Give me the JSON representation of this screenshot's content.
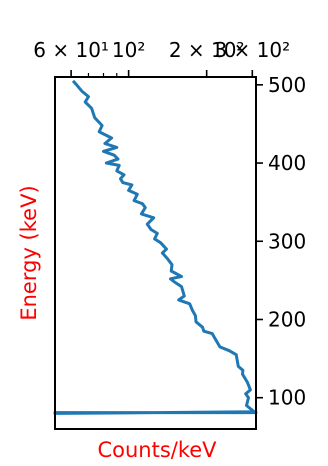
{
  "chart_data": {
    "type": "line",
    "title": "",
    "xlabel": "Counts/keV",
    "ylabel": "Energy (keV)",
    "label_color": "#ff0000",
    "line_color": "#1f77b4",
    "x_scale": "log",
    "xlim": [
      52,
      310
    ],
    "ylim": [
      60,
      510
    ],
    "x_axis_position": "top",
    "y_axis_position": "right",
    "grid": false,
    "legend": "none",
    "x_ticks": [
      {
        "value": 60,
        "label": "6 × 10¹"
      },
      {
        "value": 100,
        "label": "10²"
      },
      {
        "value": 200,
        "label": "2 × 10²"
      },
      {
        "value": 300,
        "label": "3 × 10²"
      }
    ],
    "x_minor_ticks": [
      70,
      80,
      90
    ],
    "y_ticks": [
      {
        "value": 100,
        "label": "100"
      },
      {
        "value": 200,
        "label": "200"
      },
      {
        "value": 300,
        "label": "300"
      },
      {
        "value": 400,
        "label": "400"
      },
      {
        "value": 500,
        "label": "500"
      }
    ],
    "series": [
      {
        "x": [
          310,
          310,
          52,
          52,
          305,
          285,
          290,
          283,
          295,
          287,
          275,
          276,
          265,
          260,
          245,
          225,
          216,
          210,
          195,
          193,
          182,
          181,
          176,
          172,
          156,
          164,
          160,
          150,
          145,
          160,
          146,
          147,
          141,
          135,
          140,
          133,
          126,
          129,
          122,
          118,
          125,
          112,
          116,
          113,
          105,
          108,
          100,
          103,
          95,
          93,
          96,
          90,
          92,
          82,
          91,
          88,
          80,
          90,
          81,
          86,
          77,
          79,
          74,
          72,
          68,
          70,
          66,
          63,
          61
        ],
        "y": [
          80,
          81,
          81,
          80,
          82,
          90,
          100,
          105,
          110,
          120,
          130,
          135,
          140,
          155,
          160,
          165,
          175,
          182,
          185,
          190,
          197,
          205,
          212,
          220,
          225,
          230,
          242,
          248,
          252,
          255,
          262,
          270,
          278,
          285,
          290,
          298,
          303,
          310,
          315,
          322,
          330,
          335,
          343,
          348,
          352,
          360,
          365,
          372,
          375,
          380,
          385,
          390,
          397,
          400,
          405,
          410,
          415,
          420,
          425,
          432,
          440,
          448,
          458,
          470,
          478,
          485,
          492,
          500,
          505
        ]
      }
    ]
  }
}
